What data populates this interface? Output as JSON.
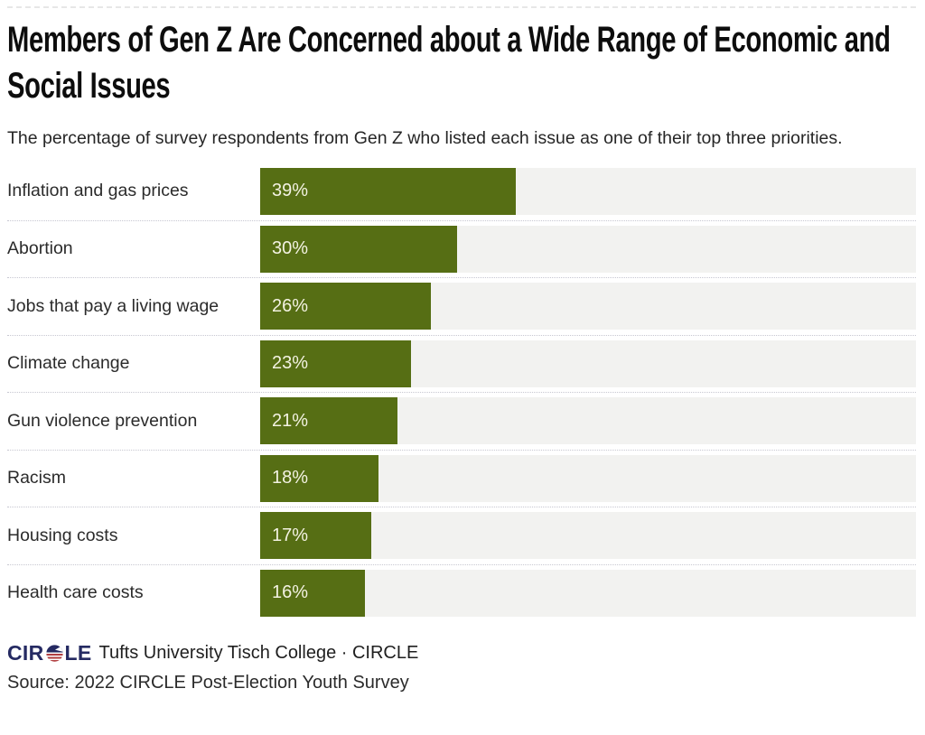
{
  "page": {
    "title_lines": [
      "Members of Gen Z Are Concerned about a Wide Range of Economic and",
      "Social Issues"
    ],
    "subtitle": "The percentage of survey respondents from Gen Z who listed each issue as one of their top three priorities."
  },
  "chart_data": {
    "type": "bar",
    "orientation": "horizontal",
    "title": "Members of Gen Z Are Concerned about a Wide Range of Economic and Social Issues",
    "subtitle": "The percentage of survey respondents from Gen Z who listed each issue as one of their top three priorities.",
    "categories": [
      "Inflation and gas prices",
      "Abortion",
      "Jobs that pay a living wage",
      "Climate change",
      "Gun violence prevention",
      "Racism",
      "Housing costs",
      "Health care costs"
    ],
    "values": [
      39,
      30,
      26,
      23,
      21,
      18,
      17,
      16
    ],
    "value_labels": [
      "39%",
      "30%",
      "26%",
      "23%",
      "21%",
      "18%",
      "17%",
      "16%"
    ],
    "xlabel": "",
    "ylabel": "",
    "xlim": [
      0,
      100
    ],
    "grid": false,
    "legend": null,
    "bar_color": "#566e14",
    "track_color": "#f2f2f0",
    "value_label_color": "#f3f2e2"
  },
  "footer": {
    "logo_text_pre": "CIR",
    "logo_text_post": "LE",
    "attribution": "Tufts University Tisch College · CIRCLE",
    "source": "Source: 2022 CIRCLE Post-Election Youth Survey",
    "logo_navy": "#252a62",
    "logo_red": "#b03c3e"
  }
}
